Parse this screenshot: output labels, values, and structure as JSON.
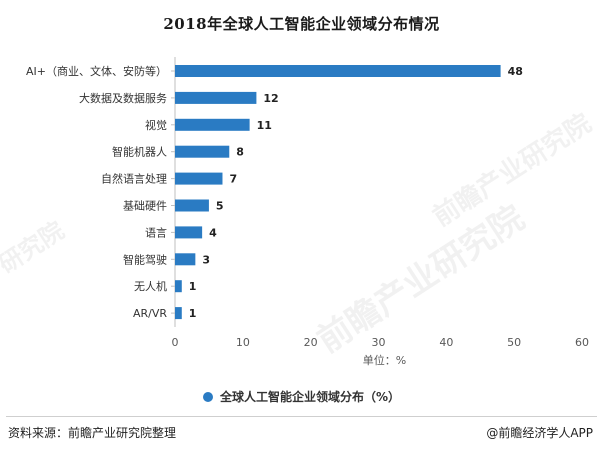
{
  "colors": {
    "bar": "#2a7bc3",
    "axis": "#bfbfbf",
    "tick_text": "#595959",
    "value_text": "#222222"
  },
  "chart_data": {
    "type": "bar",
    "orientation": "horizontal",
    "title": "2018年全球人工智能企业领域分布情况",
    "categories": [
      "AI+（商业、文体、安防等）",
      "大数据及数据服务",
      "视觉",
      "智能机器人",
      "自然语言处理",
      "基础硬件",
      "语言",
      "智能驾驶",
      "无人机",
      "AR/VR"
    ],
    "values": [
      48,
      12,
      11,
      8,
      7,
      5,
      4,
      3,
      1,
      1
    ],
    "series_name": "全球人工智能企业领域分布（%）",
    "xlabel": "单位：%",
    "ylabel": "",
    "xlim": [
      0,
      60
    ],
    "xticks": [
      0,
      10,
      20,
      30,
      40,
      50,
      60
    ],
    "grid": false,
    "legend_position": "bottom-center"
  },
  "footer": {
    "source": "资料来源：前瞻产业研究院整理",
    "brand": "@前瞻经济学人APP"
  },
  "watermarks": [
    "前瞻产业研究院",
    "前瞻产业研究院",
    "研究院"
  ]
}
